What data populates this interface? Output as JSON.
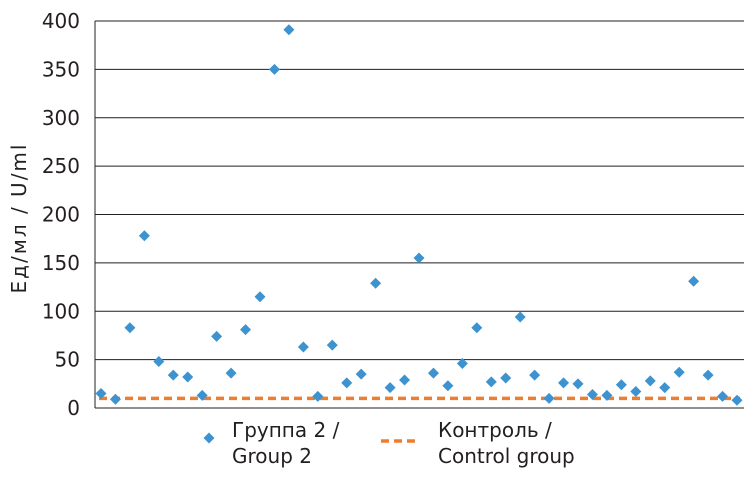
{
  "chart_data": {
    "type": "scatter",
    "ylabel": "Ед/мл  /  U/ml",
    "ylim": [
      0,
      400
    ],
    "yticks": [
      "0",
      "50",
      "100",
      "150",
      "200",
      "250",
      "300",
      "350",
      "400"
    ],
    "grid": true,
    "legend_position": "bottom",
    "series": [
      {
        "name_lines": [
          "Группа 2 /",
          "Group 2"
        ],
        "marker": "diamond",
        "color": "#3d93cf",
        "x": [
          1,
          2,
          3,
          4,
          5,
          6,
          7,
          8,
          9,
          10,
          11,
          12,
          13,
          14,
          15,
          16,
          17,
          18,
          19,
          20,
          21,
          22,
          23,
          24,
          25,
          26,
          27,
          28,
          29,
          30,
          31,
          32,
          33,
          34,
          35,
          36,
          37,
          38,
          39,
          40,
          41,
          42,
          43,
          44,
          45
        ],
        "values": [
          15,
          9,
          83,
          178,
          48,
          34,
          32,
          13,
          74,
          36,
          81,
          115,
          350,
          391,
          63,
          12,
          65,
          26,
          35,
          129,
          21,
          29,
          155,
          36,
          23,
          46,
          83,
          27,
          31,
          94,
          34,
          10,
          26,
          25,
          14,
          13,
          24,
          17,
          28,
          21,
          37,
          131,
          34,
          12,
          8
        ]
      },
      {
        "name_lines": [
          "Контроль /",
          "Control group"
        ],
        "style": "dashed-line",
        "color": "#ed7d31",
        "value": 10
      }
    ]
  }
}
